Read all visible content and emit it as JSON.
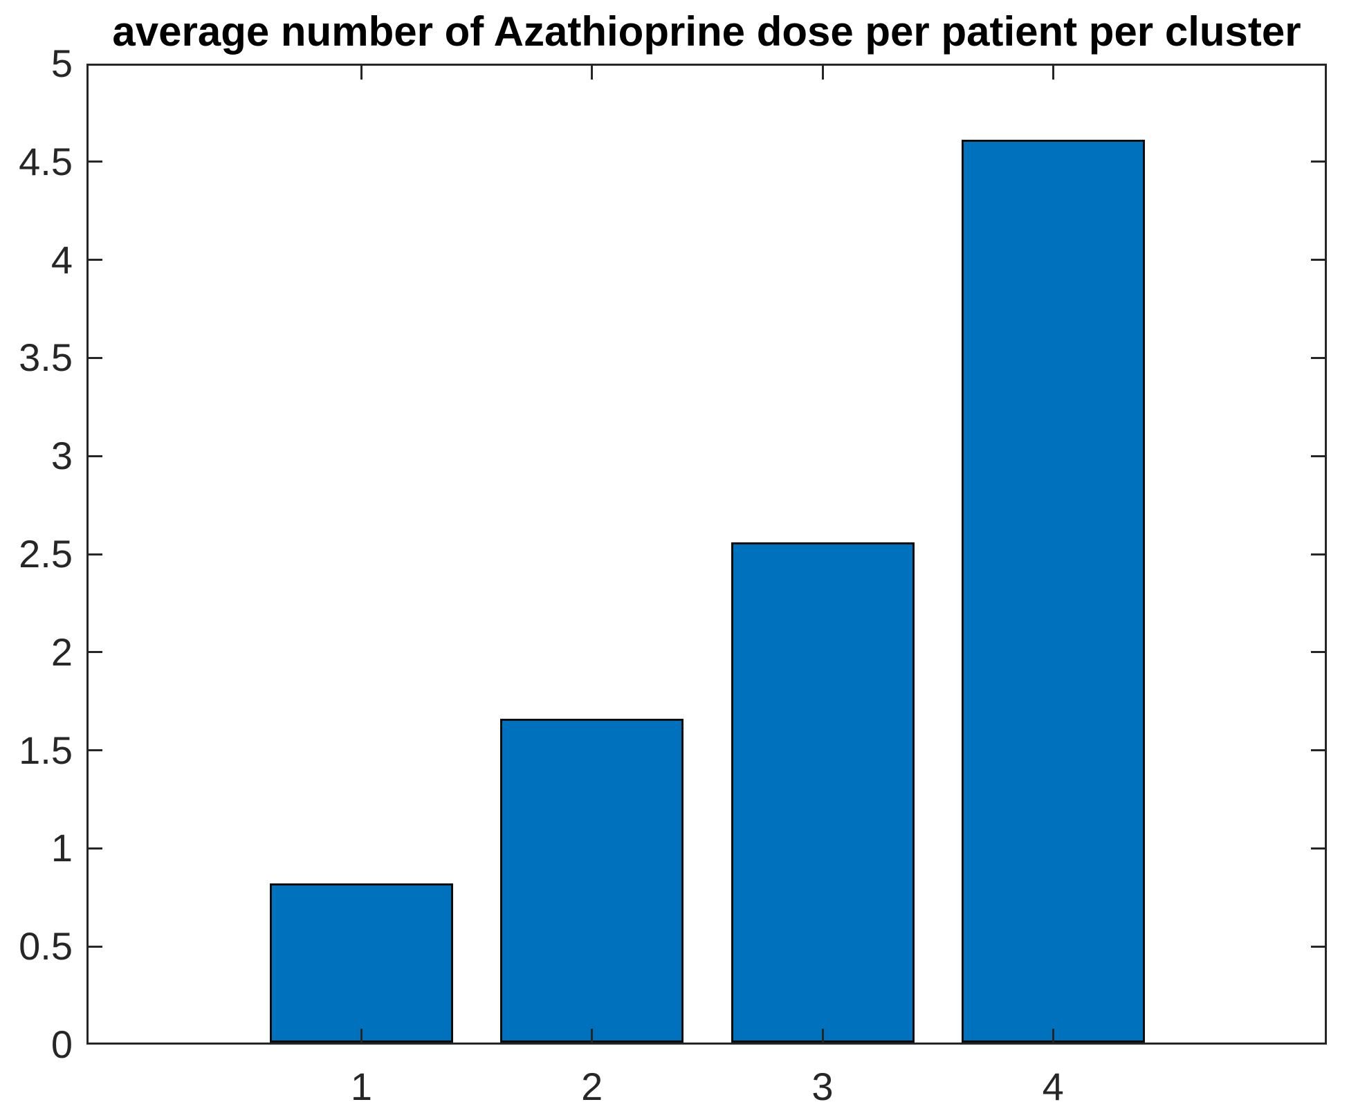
{
  "chart_data": {
    "type": "bar",
    "title": "average number of Azathioprine dose per patient per cluster",
    "categories": [
      "1",
      "2",
      "3",
      "4"
    ],
    "values": [
      0.81,
      1.65,
      2.55,
      4.6
    ],
    "xlabel": "",
    "ylabel": "",
    "ylim": [
      0,
      5
    ],
    "ytick_values": [
      0,
      0.5,
      1,
      1.5,
      2,
      2.5,
      3,
      3.5,
      4,
      4.5,
      5
    ],
    "ytick_labels": [
      "0",
      "0.5",
      "1",
      "1.5",
      "2",
      "2.5",
      "3",
      "3.5",
      "4",
      "4.5",
      "5"
    ],
    "grid": false,
    "legend": null,
    "box": true,
    "tick_direction": "in",
    "bar_color": "#0072BD",
    "bar_edge_color": "#0d0d0d",
    "axis_color": "#262626",
    "title_color": "#000000",
    "background_color": "#ffffff"
  }
}
